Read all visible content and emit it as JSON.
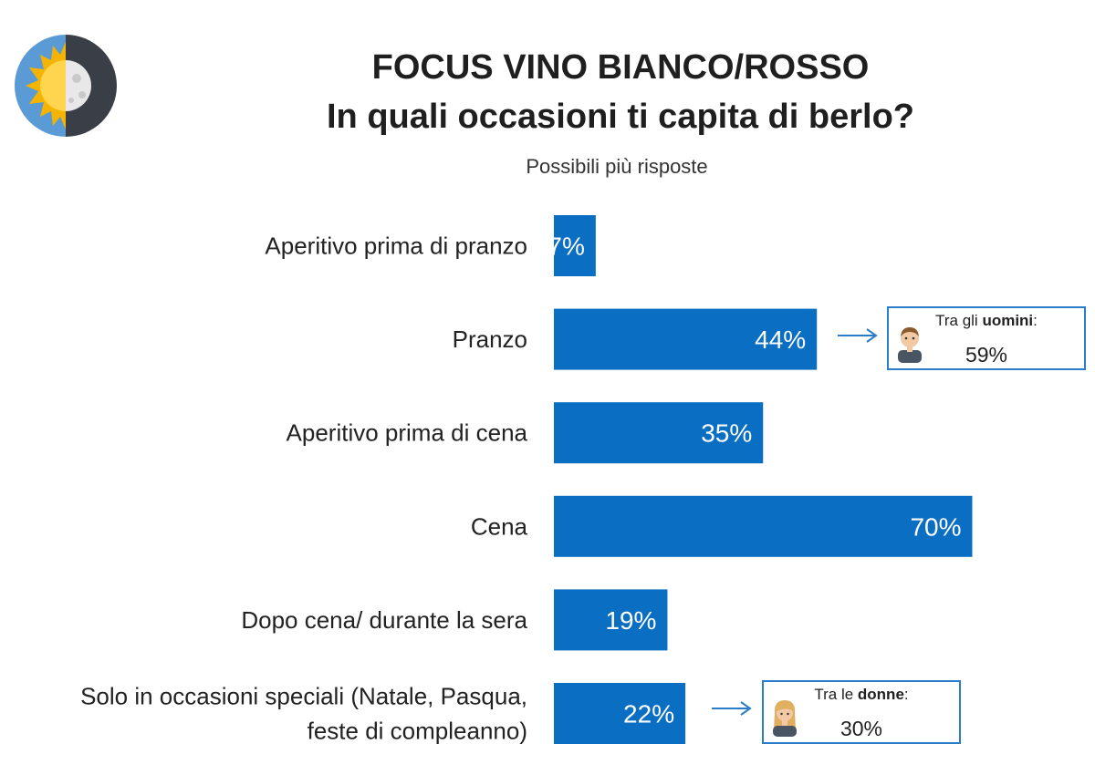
{
  "header": {
    "title_line1": "FOCUS VINO BIANCO/ROSSO",
    "title_line2": "In quali occasioni ti capita di berlo?",
    "subtitle": "Possibili più risposte"
  },
  "colors": {
    "bar": "#0a6ec2",
    "bar_text": "#ffffff",
    "accent": "#2b7cc9"
  },
  "callouts": {
    "men": {
      "prefix": "Tra gli ",
      "group": "uomini",
      "suffix": ":",
      "value": "59%"
    },
    "women": {
      "prefix": "Tra le ",
      "group": "donne",
      "suffix": ":",
      "value": "30%"
    }
  },
  "chart_data": {
    "type": "bar",
    "orientation": "horizontal",
    "title": "FOCUS VINO BIANCO/ROSSO",
    "subtitle": "Possibili più risposte",
    "categories": [
      "Aperitivo prima di pranzo",
      "Pranzo",
      "Aperitivo prima di cena",
      "Cena",
      "Dopo cena/ durante la sera",
      "Solo in occasioni speciali (Natale, Pasqua, feste di compleanno)"
    ],
    "category_lines": [
      [
        "Aperitivo prima di pranzo"
      ],
      [
        "Pranzo"
      ],
      [
        "Aperitivo prima di cena"
      ],
      [
        "Cena"
      ],
      [
        "Dopo cena/ durante la sera"
      ],
      [
        "Solo in occasioni speciali (Natale, Pasqua,",
        "feste di compleanno)"
      ]
    ],
    "values": [
      7,
      44,
      35,
      70,
      19,
      22
    ],
    "labels": [
      "7%",
      "44%",
      "35%",
      "70%",
      "19%",
      "22%"
    ],
    "unit": "%",
    "xlim": [
      0,
      100
    ],
    "grid": false,
    "legend": "none"
  }
}
